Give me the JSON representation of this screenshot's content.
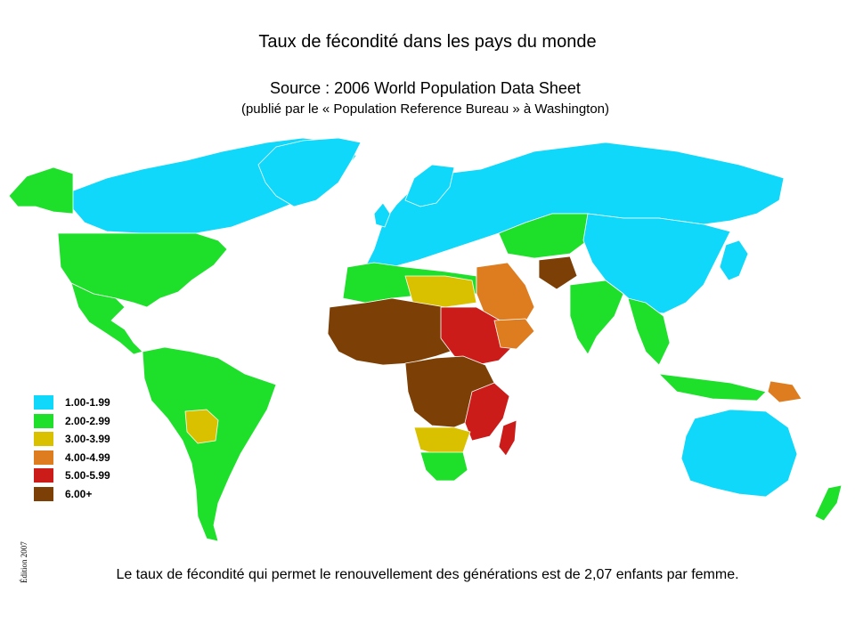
{
  "title": "Taux de fécondité dans les pays du monde",
  "source": "Source : 2006 World Population Data Sheet",
  "publisher": "(publié par le « Population Reference Bureau » à Washington)",
  "legend": [
    {
      "label": "1.00-1.99",
      "color": "#0fd8fa"
    },
    {
      "label": "2.00-2.99",
      "color": "#1ee02b"
    },
    {
      "label": "3.00-3.99",
      "color": "#d9c100"
    },
    {
      "label": "4.00-4.99",
      "color": "#de7c20"
    },
    {
      "label": "5.00-5.99",
      "color": "#cc1c1a"
    },
    {
      "label": "6.00+",
      "color": "#7c3f05"
    }
  ],
  "edition": "Édition 2007",
  "footnote": "Le taux de fécondité qui permet le renouvellement des générations est de 2,07 enfants par femme."
}
